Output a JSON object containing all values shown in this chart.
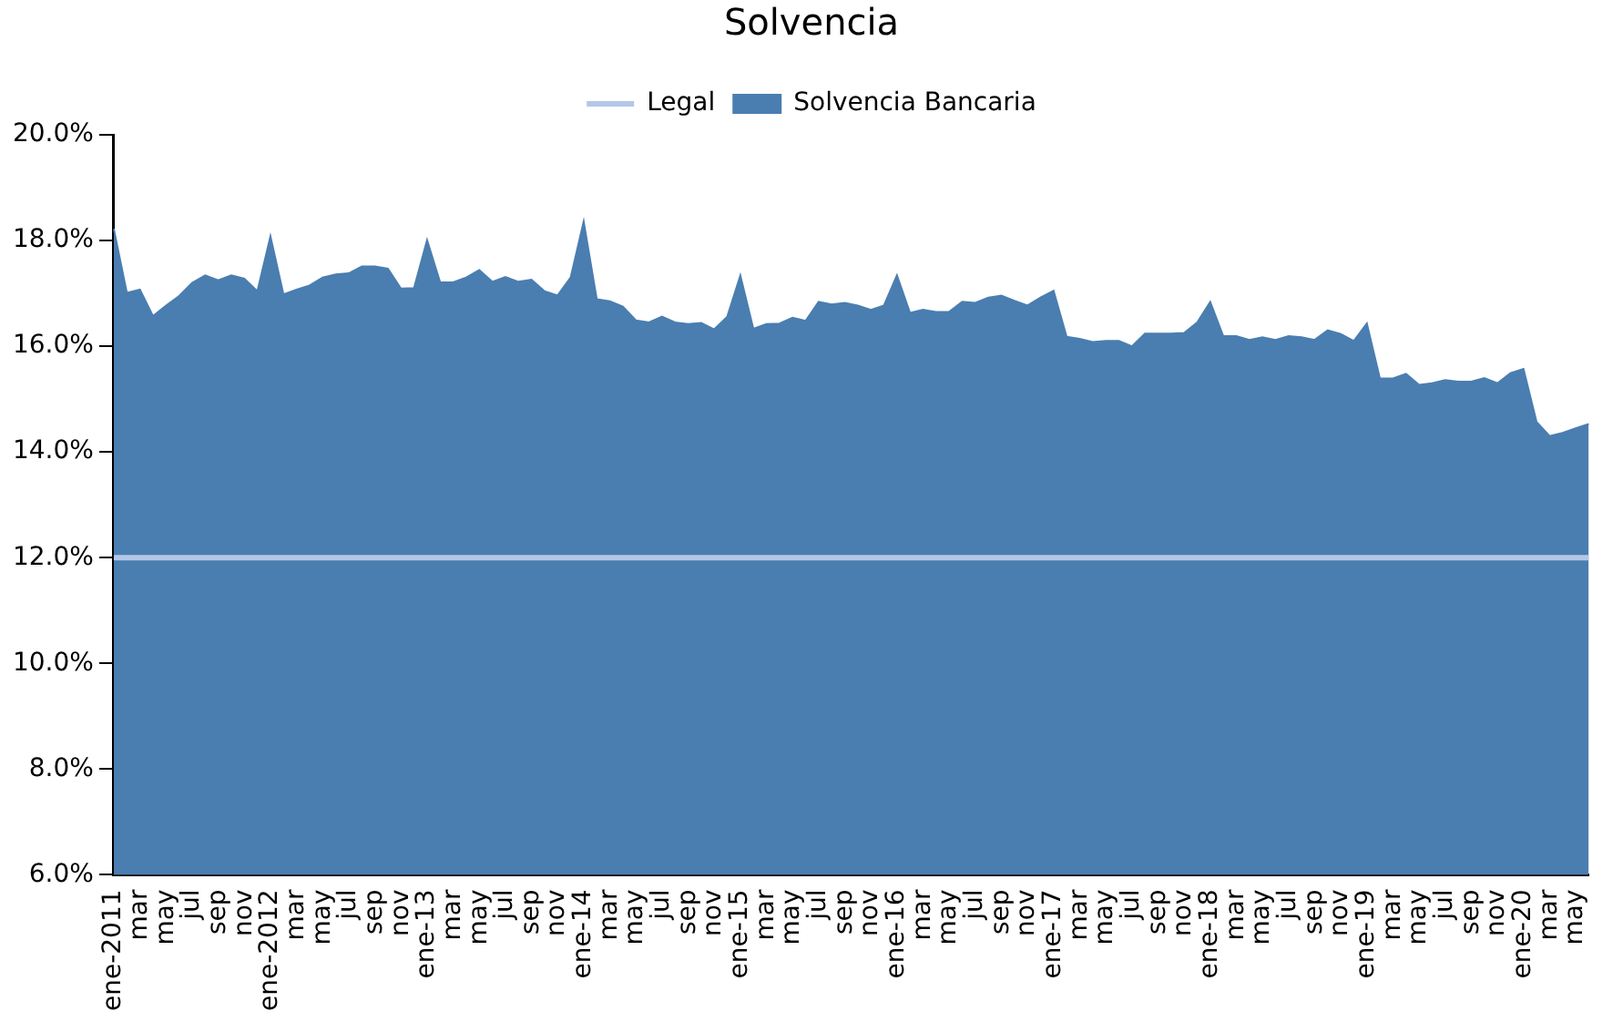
{
  "chart_data": {
    "type": "area",
    "title": "Solvencia",
    "categories": [
      "ene-2011",
      null,
      "mar",
      null,
      "may",
      null,
      "jul",
      null,
      "sep",
      null,
      "nov",
      null,
      "ene-2012",
      null,
      "mar",
      null,
      "may",
      null,
      "jul",
      null,
      "sep",
      null,
      "nov",
      null,
      "ene-13",
      null,
      "mar",
      null,
      "may",
      null,
      "jul",
      null,
      "sep",
      null,
      "nov",
      null,
      "ene-14",
      null,
      "mar",
      null,
      "may",
      null,
      "jul",
      null,
      "sep",
      null,
      "nov",
      null,
      "ene-15",
      null,
      "mar",
      null,
      "may",
      null,
      "jul",
      null,
      "sep",
      null,
      "nov",
      null,
      "ene-16",
      null,
      "mar",
      null,
      "may",
      null,
      "jul",
      null,
      "sep",
      null,
      "nov",
      null,
      "ene-17",
      null,
      "mar",
      null,
      "may",
      null,
      "jul",
      null,
      "sep",
      null,
      "nov",
      null,
      "ene-18",
      null,
      "mar",
      null,
      "may",
      null,
      "jul",
      null,
      "sep",
      null,
      "nov",
      null,
      "ene-19",
      null,
      "mar",
      null,
      "may",
      null,
      "jul",
      null,
      "sep",
      null,
      "nov",
      null,
      "ene-20",
      null,
      "mar",
      null,
      "may",
      null
    ],
    "series": [
      {
        "name": "Solvencia Bancaria",
        "color": "#4a7eb0",
        "values": [
          18.22,
          17.01,
          17.07,
          16.57,
          16.77,
          16.95,
          17.2,
          17.34,
          17.25,
          17.34,
          17.28,
          17.04,
          18.08,
          16.98,
          17.07,
          17.15,
          17.3,
          17.36,
          17.38,
          17.51,
          17.51,
          17.47,
          17.09,
          17.1,
          18.01,
          17.21,
          17.21,
          17.3,
          17.44,
          17.22,
          17.31,
          17.22,
          17.26,
          17.04,
          16.96,
          17.3,
          18.36,
          16.89,
          16.85,
          16.75,
          16.49,
          16.45,
          16.56,
          16.45,
          16.42,
          16.44,
          16.32,
          16.56,
          17.34,
          16.33,
          16.42,
          16.43,
          16.54,
          16.48,
          16.84,
          16.79,
          16.82,
          16.77,
          16.69,
          16.77,
          17.34,
          16.63,
          16.69,
          16.65,
          16.65,
          16.84,
          16.82,
          16.92,
          16.96,
          16.86,
          16.77,
          16.92,
          17.05,
          16.18,
          16.14,
          16.08,
          16.1,
          16.1,
          16.0,
          16.24,
          16.24,
          16.24,
          16.25,
          16.45,
          16.84,
          16.19,
          16.19,
          16.12,
          16.17,
          16.12,
          16.19,
          16.17,
          16.12,
          16.3,
          16.23,
          16.1,
          16.43,
          15.39,
          15.39,
          15.48,
          15.27,
          15.3,
          15.36,
          15.33,
          15.33,
          15.4,
          15.3,
          15.49,
          15.57,
          14.57,
          14.3,
          14.36,
          14.45,
          14.53
        ]
      },
      {
        "name": "Legal",
        "type": "line",
        "color": "#b4c7e7",
        "values": [
          12,
          12,
          12,
          12,
          12,
          12,
          12,
          12,
          12,
          12,
          12,
          12,
          12,
          12,
          12,
          12,
          12,
          12,
          12,
          12,
          12,
          12,
          12,
          12,
          12,
          12,
          12,
          12,
          12,
          12,
          12,
          12,
          12,
          12,
          12,
          12,
          12,
          12,
          12,
          12,
          12,
          12,
          12,
          12,
          12,
          12,
          12,
          12,
          12,
          12,
          12,
          12,
          12,
          12,
          12,
          12,
          12,
          12,
          12,
          12,
          12,
          12,
          12,
          12,
          12,
          12,
          12,
          12,
          12,
          12,
          12,
          12,
          12,
          12,
          12,
          12,
          12,
          12,
          12,
          12,
          12,
          12,
          12,
          12,
          12,
          12,
          12,
          12,
          12,
          12,
          12,
          12,
          12,
          12,
          12,
          12,
          12,
          12,
          12,
          12,
          12,
          12,
          12,
          12,
          12,
          12,
          12,
          12,
          12,
          12,
          12,
          12,
          12,
          12
        ]
      }
    ],
    "ylim": [
      6,
      20
    ],
    "yticks": [
      {
        "value": 6,
        "label": "6.0%"
      },
      {
        "value": 8,
        "label": "8.0%"
      },
      {
        "value": 10,
        "label": "10.0%"
      },
      {
        "value": 12,
        "label": "12.0%"
      },
      {
        "value": 14,
        "label": "14.0%"
      },
      {
        "value": 16,
        "label": "16.0%"
      },
      {
        "value": 18,
        "label": "18.0%"
      },
      {
        "value": 20,
        "label": "20.0%"
      }
    ],
    "grid": false,
    "legend": "top"
  }
}
